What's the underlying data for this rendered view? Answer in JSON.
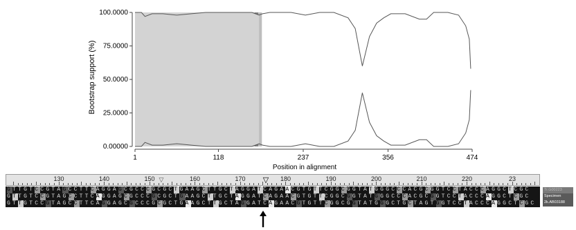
{
  "chart_data": {
    "type": "area",
    "ylabel": "Bootstrap support (%)",
    "xlabel": "Position in alignment",
    "x_ticks": [
      1,
      118,
      237,
      356,
      474
    ],
    "y_ticks": [
      "0.00000",
      "25.0000",
      "50.0000",
      "75.0000",
      "100.0000"
    ],
    "xlim": [
      1,
      474
    ],
    "ylim": [
      0,
      100
    ],
    "regions": [
      {
        "from": 1,
        "to": 5,
        "color": "#7f7f7f"
      },
      {
        "from": 5,
        "to": 160,
        "color": "#d3d3d3"
      },
      {
        "from": 160,
        "to": 169,
        "color": "#bdbdbd"
      },
      {
        "from": 169,
        "to": 174,
        "color": "#7f7f7f"
      },
      {
        "from": 174,
        "to": 179,
        "color": "#bdbdbd"
      }
    ],
    "series": [
      {
        "x": [
          1,
          10,
          15,
          25,
          40,
          60,
          80,
          100,
          120,
          140,
          160,
          165,
          170,
          175,
          180,
          190,
          200,
          220,
          240,
          260,
          280,
          300,
          310,
          320,
          330,
          340,
          350,
          360,
          380,
          400,
          410,
          420,
          440,
          455,
          465,
          470,
          472
        ],
        "y": [
          100,
          100,
          97,
          99,
          99,
          98,
          99,
          100,
          100,
          100,
          100,
          100,
          99,
          98,
          99,
          100,
          100,
          100,
          98,
          100,
          100,
          96,
          88,
          60,
          82,
          92,
          96,
          99,
          99,
          95,
          95,
          100,
          100,
          98,
          90,
          80,
          58
        ]
      },
      {
        "x": [
          1,
          10,
          15,
          25,
          40,
          60,
          80,
          100,
          120,
          140,
          160,
          165,
          170,
          175,
          180,
          190,
          200,
          220,
          240,
          260,
          280,
          300,
          310,
          320,
          330,
          340,
          350,
          360,
          380,
          400,
          410,
          420,
          440,
          455,
          465,
          470,
          472
        ],
        "y": [
          0,
          0,
          3,
          1,
          1,
          2,
          1,
          0,
          0,
          0,
          0,
          0,
          1,
          2,
          1,
          0,
          0,
          0,
          2,
          0,
          0,
          4,
          12,
          40,
          18,
          8,
          4,
          1,
          1,
          5,
          5,
          0,
          0,
          2,
          10,
          20,
          42
        ]
      }
    ]
  },
  "ruler": {
    "numbers": [
      "130",
      "140",
      "150",
      "160",
      "170",
      "180",
      "190",
      "200",
      "210",
      "220",
      "23"
    ],
    "marker_left": "▽",
    "marker_cursor": "▽"
  },
  "alignment": {
    "rows": [
      "GTTGTCCGTAGCCTTCAGGAGCGCCCGCGCTGAAGCTTGCTAGGATCAGAACGTGTTCGGCGGTATGGGCCCACGCGGTCCTACCCAGGCTCGC",
      "GTTGTCCGTAGCCTTCAGGAGCGCCCGCGCTGAAGCTTGCTAGGATCAGAACGTGTTCGGCGGTATGGGCCCACGCGGTCCTACCCAGGCTCGC",
      "GTTGTCCGTAGCCTTCAGGAGCGCCCGCGCTGAAGCTTGCTAGGATCAGAACGTGTTCGGCGGTATGGGCTGCTAGTGGTCCTACCCAGGCTCGC"
    ],
    "legend": [
      "Tr.G00223",
      "Specimen",
      "2k.AB03188"
    ]
  },
  "pointer": {
    "icon": "up-arrow-icon"
  }
}
